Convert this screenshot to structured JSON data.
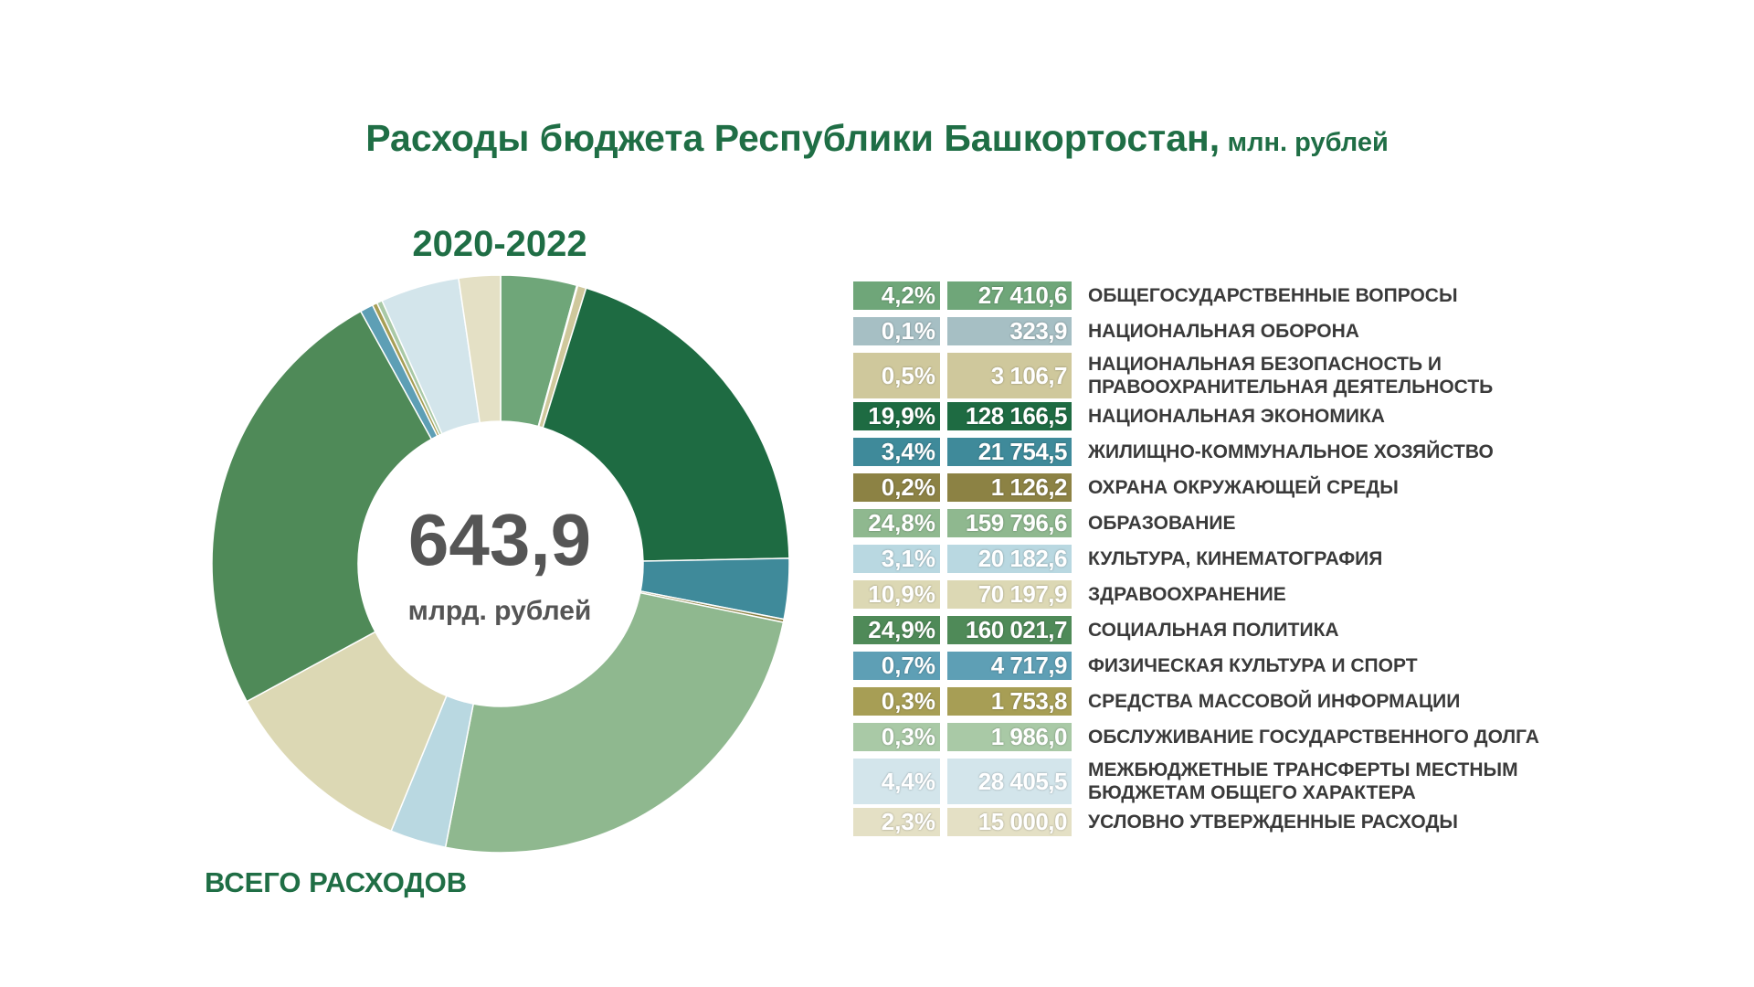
{
  "title": "Расходы бюджета Республики Башкортостан,",
  "unit": "млн. рублей",
  "period": "2020-2022",
  "center": {
    "value": "643,9",
    "unit": "млрд. рублей"
  },
  "total_label": "ВСЕГО РАСХОДОВ",
  "chart_data": {
    "type": "pie",
    "title": "Расходы бюджета Республики Башкортостан, млн. рублей",
    "subtitle": "2020-2022",
    "total": "643,9 млрд. рублей",
    "slices": [
      {
        "label": "ОБЩЕГОСУДАРСТВЕННЫЕ ВОПРОСЫ",
        "value": 27410.6,
        "value_text": "27 410,6",
        "percent": "4,2%",
        "color": "#6fa679"
      },
      {
        "label": "НАЦИОНАЛЬНАЯ ОБОРОНА",
        "value": 323.9,
        "value_text": "323,9",
        "percent": "0,1%",
        "color": "#a6bfc4"
      },
      {
        "label": "НАЦИОНАЛЬНАЯ БЕЗОПАСНОСТЬ И\nПРАВООХРАНИТЕЛЬНАЯ ДЕЯТЕЛЬНОСТЬ",
        "value": 3106.7,
        "value_text": "3 106,7",
        "percent": "0,5%",
        "color": "#cfc89c"
      },
      {
        "label": "НАЦИОНАЛЬНАЯ ЭКОНОМИКА",
        "value": 128166.5,
        "value_text": "128 166,5",
        "percent": "19,9%",
        "color": "#1e6b42"
      },
      {
        "label": "ЖИЛИЩНО-КОММУНАЛЬНОЕ ХОЗЯЙСТВО",
        "value": 21754.5,
        "value_text": "21 754,5",
        "percent": "3,4%",
        "color": "#3f8a9a"
      },
      {
        "label": "ОХРАНА ОКРУЖАЮЩЕЙ СРЕДЫ",
        "value": 1126.2,
        "value_text": "1 126,2",
        "percent": "0,2%",
        "color": "#8c8244"
      },
      {
        "label": "ОБРАЗОВАНИЕ",
        "value": 159796.6,
        "value_text": "159 796,6",
        "percent": "24,8%",
        "color": "#8fb88f"
      },
      {
        "label": "КУЛЬТУРА, КИНЕМАТОГРАФИЯ",
        "value": 20182.6,
        "value_text": "20 182,6",
        "percent": "3,1%",
        "color": "#b9d8e1"
      },
      {
        "label": "ЗДРАВООХРАНЕНИЕ",
        "value": 70197.9,
        "value_text": "70 197,9",
        "percent": "10,9%",
        "color": "#dcd8b4"
      },
      {
        "label": "СОЦИАЛЬНАЯ ПОЛИТИКА",
        "value": 160021.7,
        "value_text": "160 021,7",
        "percent": "24,9%",
        "color": "#4f8a58"
      },
      {
        "label": "ФИЗИЧЕСКАЯ КУЛЬТУРА И СПОРТ",
        "value": 4717.9,
        "value_text": "4 717,9",
        "percent": "0,7%",
        "color": "#5e9fb5"
      },
      {
        "label": "СРЕДСТВА МАССОВОЙ ИНФОРМАЦИИ",
        "value": 1753.8,
        "value_text": "1 753,8",
        "percent": "0,3%",
        "color": "#a79e55"
      },
      {
        "label": "ОБСЛУЖИВАНИЕ ГОСУДАРСТВЕННОГО ДОЛГА",
        "value": 1986.0,
        "value_text": "1 986,0",
        "percent": "0,3%",
        "color": "#a9c9a6"
      },
      {
        "label": "МЕЖБЮДЖЕТНЫЕ ТРАНСФЕРТЫ МЕСТНЫМ\nБЮДЖЕТАМ ОБЩЕГО ХАРАКТЕРА",
        "value": 28405.5,
        "value_text": "28 405,5",
        "percent": "4,4%",
        "color": "#d3e5eb"
      },
      {
        "label": "УСЛОВНО УТВЕРЖДЕННЫЕ РАСХОДЫ",
        "value": 15000.0,
        "value_text": "15 000,0",
        "percent": "2,3%",
        "color": "#e4e0c5"
      }
    ]
  }
}
